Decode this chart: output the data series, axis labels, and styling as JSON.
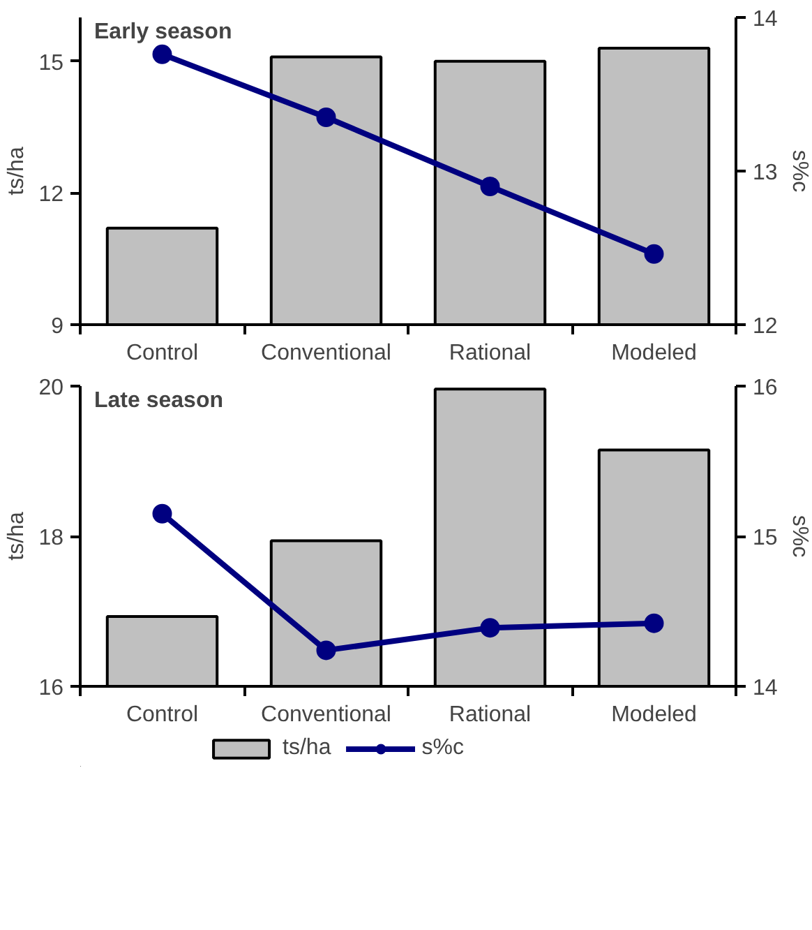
{
  "chart_data": [
    {
      "type": "bar",
      "title": "Early season",
      "categories": [
        "Control",
        "Conventional",
        "Rational",
        "Modeled"
      ],
      "ylabel": "ts/ha",
      "y2label": "s%c",
      "ylim": [
        9,
        16
      ],
      "yticks": [
        9,
        12,
        15
      ],
      "y2lim": [
        12,
        14
      ],
      "y2ticks": [
        12,
        13,
        14
      ],
      "grid": false,
      "legend": false,
      "marker": "circle",
      "series": [
        {
          "color": "#c0c0c0",
          "values": [
            11.2,
            15.1,
            15.0,
            15.3
          ]
        },
        {
          "type": "line",
          "axis": "y2",
          "color": "#000080",
          "values": [
            13.76,
            13.35,
            12.9,
            12.46
          ]
        }
      ]
    },
    {
      "type": "bar",
      "title": "Late season",
      "categories": [
        "Control",
        "Conventional",
        "Rational",
        "Modeled"
      ],
      "ylabel": "ts/ha",
      "y2label": "s%c",
      "ylim": [
        16,
        20
      ],
      "yticks": [
        16,
        18,
        20
      ],
      "y2lim": [
        14,
        16
      ],
      "y2ticks": [
        14,
        15,
        16
      ],
      "grid": false,
      "legend": "bottom",
      "marker": "circle",
      "series": [
        {
          "name": "ts/ha",
          "color": "#c0c0c0",
          "values": [
            16.93,
            17.94,
            19.96,
            19.15
          ]
        },
        {
          "name": "s%c",
          "type": "line",
          "axis": "y2",
          "color": "#000080",
          "values": [
            15.15,
            14.24,
            14.39,
            14.42
          ]
        }
      ]
    }
  ]
}
